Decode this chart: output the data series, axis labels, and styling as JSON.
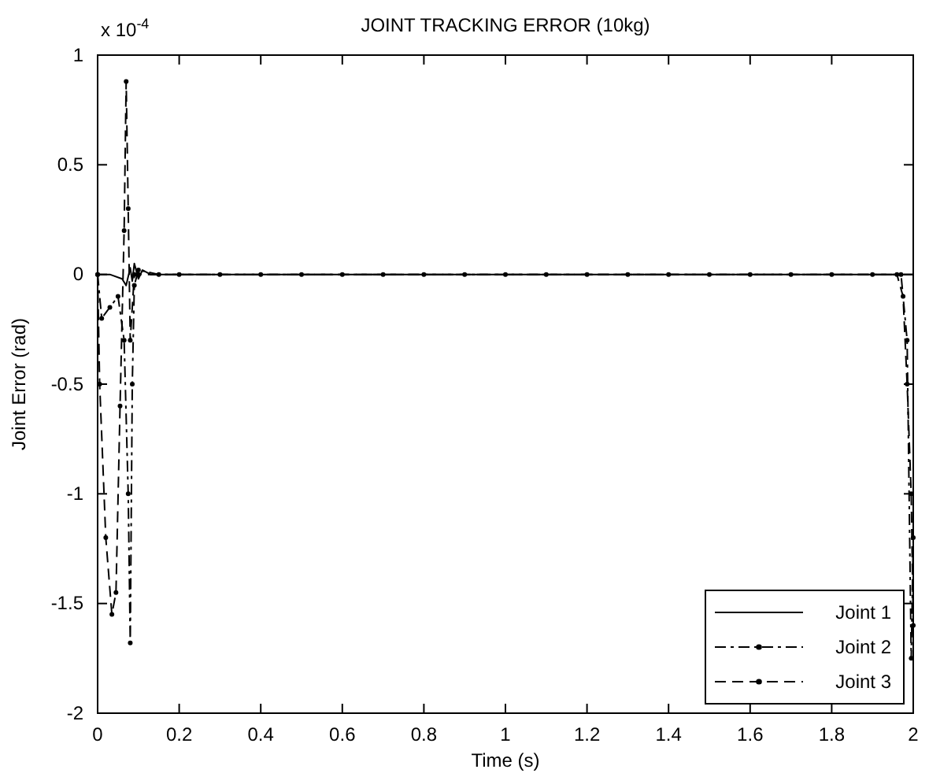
{
  "chart_data": {
    "type": "line",
    "title": "JOINT TRACKING ERROR (10kg)",
    "xlabel": "Time (s)",
    "ylabel": "Joint Error (rad)",
    "annotations": [
      "x 10$^{-4}$"
    ],
    "xlim": [
      0,
      2
    ],
    "xticks": [
      0,
      0.2,
      0.4,
      0.6,
      0.8,
      1,
      1.2,
      1.4,
      1.6,
      1.8,
      2
    ],
    "ylim": [
      -2,
      1
    ],
    "yticks": [
      -2,
      -1.5,
      -1,
      -0.5,
      0,
      0.5,
      1
    ],
    "grid": false,
    "legend": "bottom right",
    "series": [
      {
        "name": "Joint 1",
        "color": "#000000",
        "line_style": "solid",
        "marker": "none",
        "x": [
          0,
          0.03,
          0.06,
          0.07,
          0.08,
          0.085,
          0.09,
          0.1,
          0.11,
          0.13,
          0.2,
          0.4,
          0.6,
          0.8,
          1,
          1.2,
          1.4,
          1.6,
          1.8,
          1.95,
          2
        ],
        "values": [
          0,
          0,
          -0.02,
          -0.05,
          0.03,
          -0.03,
          0.05,
          -0.02,
          0.02,
          0,
          0,
          0,
          0,
          0,
          0,
          0,
          0,
          0,
          0,
          0,
          0
        ]
      },
      {
        "name": "Joint 2",
        "color": "#000000",
        "line_style": "dashdot",
        "marker": "circle",
        "x": [
          0,
          0.01,
          0.03,
          0.05,
          0.065,
          0.075,
          0.08,
          0.085,
          0.09,
          0.1,
          0.15,
          0.3,
          0.5,
          0.7,
          0.9,
          1.1,
          1.3,
          1.5,
          1.7,
          1.9,
          1.97,
          1.985,
          1.995,
          2
        ],
        "values": [
          0,
          -0.2,
          -0.15,
          -0.1,
          -0.3,
          -1,
          -1.68,
          -0.5,
          -0.05,
          0.02,
          0,
          0,
          0,
          0,
          0,
          0,
          0,
          0,
          0,
          0,
          0,
          -0.3,
          -1.75,
          -1.2
        ]
      },
      {
        "name": "Joint 3",
        "color": "#000000",
        "line_style": "dashed",
        "marker": "circle",
        "x": [
          0,
          0.005,
          0.02,
          0.035,
          0.045,
          0.055,
          0.065,
          0.07,
          0.075,
          0.08,
          0.09,
          0.1,
          0.2,
          0.4,
          0.6,
          0.8,
          1,
          1.2,
          1.4,
          1.6,
          1.8,
          1.96,
          1.975,
          1.985,
          1.995,
          2
        ],
        "values": [
          0,
          -0.5,
          -1.2,
          -1.55,
          -1.45,
          -0.6,
          0.2,
          0.88,
          0.3,
          -0.3,
          0,
          0,
          0,
          0,
          0,
          0,
          0,
          0,
          0,
          0,
          0,
          0,
          -0.1,
          -0.5,
          -1,
          -1.6
        ]
      }
    ]
  }
}
